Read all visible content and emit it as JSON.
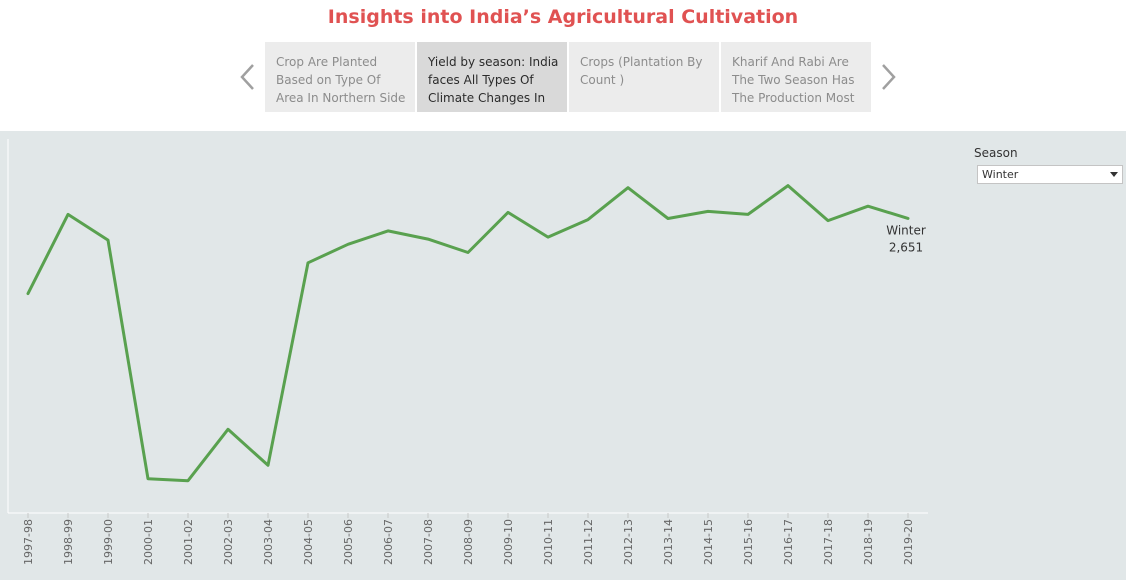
{
  "story": {
    "title": "Insights into India’s Agricultural Cultivation",
    "points": [
      {
        "label": "Crop Are Planted Based on Type Of Area In Northern Side",
        "active": false
      },
      {
        "label": "Yield by season: India faces All Types Of Climate Changes In",
        "active": true
      },
      {
        "label": "Crops (Plantation By Count )",
        "active": false
      },
      {
        "label": "Kharif And Rabi Are The Two Season Has The Production Most",
        "active": false
      }
    ]
  },
  "filter": {
    "label": "Season",
    "selected": "Winter"
  },
  "colors": {
    "title": "#e05252",
    "line": "#59a14f",
    "background": "#e1e7e8"
  },
  "chart_data": {
    "type": "line",
    "title": "",
    "xlabel": "",
    "ylabel": "",
    "y_axis_labels_shown": false,
    "ylim": [
      0,
      3200
    ],
    "grid": false,
    "categories": [
      "1997-98",
      "1998-99",
      "1999-00",
      "2000-01",
      "2001-02",
      "2002-03",
      "2003-04",
      "2004-05",
      "2005-06",
      "2006-07",
      "2007-08",
      "2008-09",
      "2009-10",
      "2010-11",
      "2011-12",
      "2012-13",
      "2013-14",
      "2014-15",
      "2015-16",
      "2016-17",
      "2017-18",
      "2018-19",
      "2019-20"
    ],
    "series": [
      {
        "name": "Winter",
        "values": [
          1920,
          2690,
          2440,
          120,
          100,
          600,
          250,
          2220,
          2400,
          2530,
          2450,
          2320,
          2710,
          2470,
          2640,
          2950,
          2650,
          2720,
          2690,
          2970,
          2630,
          2770,
          2651
        ]
      }
    ],
    "end_label": {
      "series": "Winter",
      "value_text": "2,651"
    }
  }
}
